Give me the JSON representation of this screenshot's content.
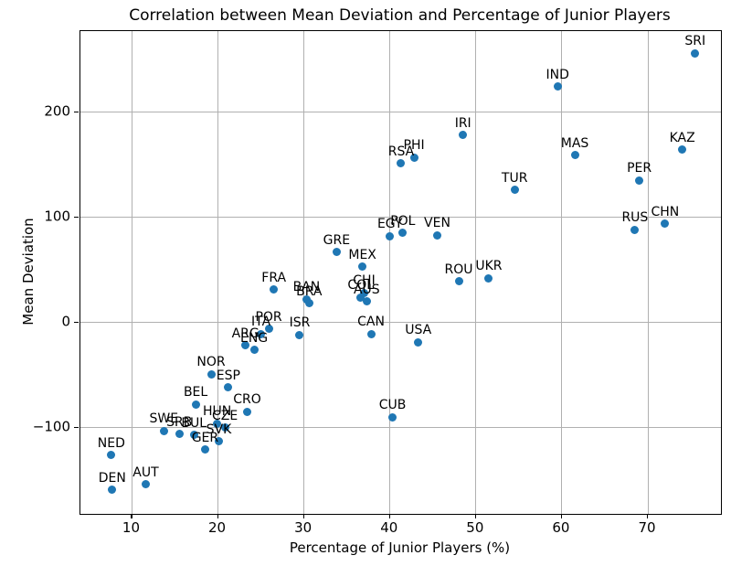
{
  "chart_data": {
    "type": "scatter",
    "title": "Correlation between Mean Deviation and Percentage of Junior Players",
    "xlabel": "Percentage of Junior Players (%)",
    "ylabel": "Mean Deviation",
    "xlim": [
      4.0,
      78.5
    ],
    "ylim": [
      -182,
      277
    ],
    "x_ticks": [
      10,
      20,
      30,
      40,
      50,
      60,
      70
    ],
    "y_ticks": [
      200,
      100,
      0,
      -100
    ],
    "grid": true,
    "marker_color": "#1f77b4",
    "grid_color": "#b0b0b0",
    "annotation": "country codes labeled above each point",
    "points": [
      {
        "label": "NED",
        "x": 7.6,
        "y": -126
      },
      {
        "label": "DEN",
        "x": 7.7,
        "y": -159
      },
      {
        "label": "AUT",
        "x": 11.6,
        "y": -154
      },
      {
        "label": "SWE",
        "x": 13.7,
        "y": -103
      },
      {
        "label": "SRB",
        "x": 15.5,
        "y": -106
      },
      {
        "label": "BUL",
        "x": 17.2,
        "y": -107
      },
      {
        "label": "BEL",
        "x": 17.4,
        "y": -78
      },
      {
        "label": "GER",
        "x": 18.5,
        "y": -121
      },
      {
        "label": "NOR",
        "x": 19.2,
        "y": -49
      },
      {
        "label": "HUN",
        "x": 19.9,
        "y": -96
      },
      {
        "label": "SVK",
        "x": 20.1,
        "y": -113
      },
      {
        "label": "CZE",
        "x": 20.8,
        "y": -100
      },
      {
        "label": "ESP",
        "x": 21.2,
        "y": -62
      },
      {
        "label": "ARG",
        "x": 23.2,
        "y": -22
      },
      {
        "label": "CRO",
        "x": 23.4,
        "y": -85
      },
      {
        "label": "ENG",
        "x": 24.2,
        "y": -26
      },
      {
        "label": "ITA",
        "x": 25.0,
        "y": -11
      },
      {
        "label": "POR",
        "x": 25.9,
        "y": -6
      },
      {
        "label": "FRA",
        "x": 26.5,
        "y": 31
      },
      {
        "label": "ISR",
        "x": 29.5,
        "y": -12
      },
      {
        "label": "BAN",
        "x": 30.3,
        "y": 22
      },
      {
        "label": "BRA",
        "x": 30.6,
        "y": 18
      },
      {
        "label": "GRE",
        "x": 33.8,
        "y": 67
      },
      {
        "label": "MEX",
        "x": 36.8,
        "y": 53
      },
      {
        "label": "COL",
        "x": 36.6,
        "y": 24
      },
      {
        "label": "CHI",
        "x": 37.0,
        "y": 28
      },
      {
        "label": "AUS",
        "x": 37.3,
        "y": 20
      },
      {
        "label": "CAN",
        "x": 37.8,
        "y": -11
      },
      {
        "label": "EGY",
        "x": 40.0,
        "y": 82
      },
      {
        "label": "CUB",
        "x": 40.3,
        "y": -90
      },
      {
        "label": "RSA",
        "x": 41.3,
        "y": 151
      },
      {
        "label": "POL",
        "x": 41.5,
        "y": 85
      },
      {
        "label": "PHI",
        "x": 42.8,
        "y": 157
      },
      {
        "label": "USA",
        "x": 43.3,
        "y": -19
      },
      {
        "label": "VEN",
        "x": 45.5,
        "y": 83
      },
      {
        "label": "ROU",
        "x": 48.0,
        "y": 39
      },
      {
        "label": "IRI",
        "x": 48.5,
        "y": 178
      },
      {
        "label": "UKR",
        "x": 51.5,
        "y": 42
      },
      {
        "label": "TUR",
        "x": 54.5,
        "y": 126
      },
      {
        "label": "IND",
        "x": 59.5,
        "y": 224
      },
      {
        "label": "MAS",
        "x": 61.5,
        "y": 159
      },
      {
        "label": "RUS",
        "x": 68.5,
        "y": 88
      },
      {
        "label": "PER",
        "x": 69.0,
        "y": 135
      },
      {
        "label": "CHN",
        "x": 72.0,
        "y": 94
      },
      {
        "label": "KAZ",
        "x": 74.0,
        "y": 164
      },
      {
        "label": "SRI",
        "x": 75.5,
        "y": 256
      }
    ]
  }
}
